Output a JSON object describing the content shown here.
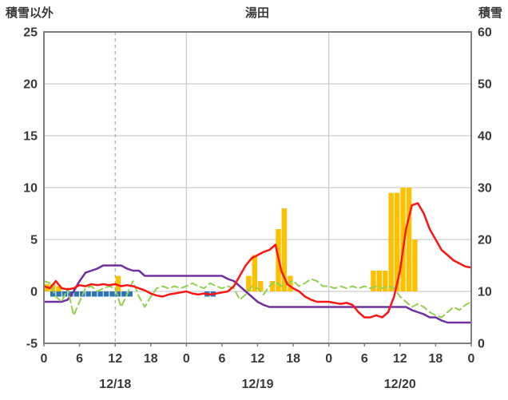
{
  "header": {
    "left_axis_title": "積雪以外",
    "station_title": "湯田",
    "right_axis_title": "積雪"
  },
  "chart_data": {
    "type": "line",
    "title": "湯田",
    "grid": true,
    "legend_position": "none",
    "left_axis": {
      "label": "積雪以外",
      "min": -5,
      "max": 25,
      "ticks": [
        25,
        20,
        15,
        10,
        5,
        0,
        -5
      ]
    },
    "right_axis": {
      "label": "積雪",
      "min": 0,
      "max": 60,
      "ticks": [
        60,
        50,
        40,
        30,
        20,
        10,
        0
      ]
    },
    "x_axis": {
      "hours_total": 72,
      "tick_hours": [
        0,
        6,
        12,
        18,
        24,
        30,
        36,
        42,
        48,
        54,
        60,
        66,
        72
      ],
      "tick_labels": [
        "0",
        "6",
        "12",
        "18",
        "0",
        "6",
        "12",
        "18",
        "0",
        "6",
        "12",
        "18",
        "0"
      ],
      "day_labels": [
        {
          "label": "12/18",
          "center_hour": 12
        },
        {
          "label": "12/19",
          "center_hour": 36
        },
        {
          "label": "12/20",
          "center_hour": 60
        }
      ],
      "day_boundary_hours": [
        24,
        48
      ],
      "marker_line_hour": 12
    },
    "colors": {
      "precipitation_bar": "#FFC000",
      "sunshine_bar": "#2E75B6",
      "temperature_line": "#FF1414",
      "snow_depth_line": "#7030A0",
      "green_dashed_line": "#92D050",
      "grid": "#C0C0C0",
      "border": "#7F7F7F",
      "text": "#3A3A3A"
    },
    "series": [
      {
        "name": "precipitation-bars",
        "type": "bar-up",
        "axis": "left",
        "color": "#FFC000",
        "values": [
          0.7,
          0.7,
          0.5,
          0,
          0,
          0,
          0,
          0,
          0,
          0,
          0,
          0,
          1.5,
          0,
          0,
          0,
          0,
          0,
          0,
          0,
          0,
          0,
          0,
          0,
          0,
          0,
          0,
          0,
          0,
          0,
          0,
          0,
          0,
          0,
          1.5,
          3.5,
          1,
          0,
          1,
          6,
          8,
          1.5,
          0,
          0,
          0,
          0,
          0,
          0,
          0,
          0,
          0,
          0,
          0,
          0,
          0,
          2,
          2,
          2,
          9.5,
          9.5,
          10,
          10,
          5,
          0,
          0,
          0,
          0,
          0,
          0,
          0,
          0,
          0
        ]
      },
      {
        "name": "sunshine-bars",
        "type": "bar-down",
        "axis": "left",
        "color": "#2E75B6",
        "values": [
          0,
          0.5,
          0.5,
          0.5,
          0.5,
          0.5,
          0.5,
          0.5,
          0.5,
          0.5,
          0.5,
          0.5,
          0.5,
          0.5,
          0.5,
          0,
          0,
          0,
          0,
          0,
          0,
          0,
          0,
          0,
          0,
          0,
          0,
          0.5,
          0.5,
          0,
          0,
          0,
          0,
          0,
          0,
          0,
          0,
          0,
          0,
          0,
          0,
          0,
          0,
          0,
          0,
          0,
          0,
          0,
          0,
          0,
          0,
          0,
          0,
          0,
          0,
          0,
          0,
          0,
          0,
          0,
          0,
          0,
          0,
          0,
          0,
          0,
          0,
          0,
          0,
          0,
          0,
          0
        ]
      },
      {
        "name": "snow-depth-line",
        "type": "line",
        "axis": "right",
        "color": "#7030A0",
        "width": 2.5,
        "values": [
          -1,
          -1,
          -1,
          -1,
          -0.8,
          0,
          1,
          1.8,
          2,
          2.2,
          2.5,
          2.5,
          2.5,
          2.5,
          2.2,
          2,
          2,
          1.5,
          1.5,
          1.5,
          1.5,
          1.5,
          1.5,
          1.5,
          1.5,
          1.5,
          1.5,
          1.5,
          1.5,
          1.5,
          1.5,
          1.2,
          1,
          0.5,
          0,
          -0.5,
          -1,
          -1.3,
          -1.5,
          -1.5,
          -1.5,
          -1.5,
          -1.5,
          -1.5,
          -1.5,
          -1.5,
          -1.5,
          -1.5,
          -1.5,
          -1.5,
          -1.5,
          -1.5,
          -1.5,
          -1.5,
          -1.5,
          -1.5,
          -1.5,
          -1.5,
          -1.5,
          -1.5,
          -1.5,
          -1.5,
          -1.8,
          -2,
          -2.2,
          -2.5,
          -2.5,
          -2.8,
          -3,
          -3,
          -3,
          -3,
          -3
        ]
      },
      {
        "name": "green-dashed-line",
        "type": "line-dashed",
        "axis": "left",
        "color": "#92D050",
        "width": 2,
        "values": [
          1.0,
          0.8,
          -0.5,
          -1.0,
          0.3,
          -2.3,
          -1.0,
          0.3,
          0.5,
          0.0,
          0.3,
          0.5,
          0.3,
          -1.5,
          -0.3,
          1.0,
          -0.5,
          -1.5,
          -0.5,
          0.3,
          0.5,
          0.3,
          0.5,
          0.3,
          0.5,
          0.8,
          0.5,
          0.3,
          0.8,
          0.5,
          0.3,
          0.5,
          0.3,
          -0.8,
          -0.3,
          0.5,
          0.3,
          -0.3,
          0.5,
          1.0,
          0.5,
          0.8,
          1.0,
          0.5,
          0.8,
          1.2,
          1.0,
          0.5,
          0.5,
          0.3,
          0.5,
          0.3,
          0.5,
          0.3,
          0.5,
          0.3,
          0.5,
          0.3,
          0.5,
          0.3,
          -0.5,
          -1.0,
          -1.5,
          -1.2,
          -1.5,
          -2.0,
          -2.3,
          -2.5,
          -2.0,
          -1.5,
          -1.8,
          -1.3,
          -1.0
        ]
      },
      {
        "name": "temperature-line",
        "type": "line",
        "axis": "left",
        "color": "#FF1414",
        "width": 2.5,
        "values": [
          0.5,
          0.3,
          1.0,
          0.3,
          0.2,
          0.3,
          0.6,
          0.5,
          0.7,
          0.6,
          0.7,
          0.6,
          0.7,
          0.5,
          0.6,
          0.5,
          0.3,
          0.1,
          -0.2,
          -0.4,
          -0.5,
          -0.3,
          -0.2,
          -0.1,
          0.0,
          -0.2,
          -0.3,
          -0.2,
          -0.3,
          -0.2,
          -0.1,
          0.0,
          0.5,
          1.5,
          2.5,
          3.2,
          3.5,
          3.8,
          4.0,
          4.5,
          2.0,
          0.7,
          0.3,
          0.0,
          -0.5,
          -0.8,
          -1.0,
          -1.0,
          -1.0,
          -1.1,
          -1.2,
          -1.1,
          -1.3,
          -2.0,
          -2.5,
          -2.5,
          -2.3,
          -2.5,
          -2.0,
          -0.5,
          2.0,
          6.0,
          8.3,
          8.5,
          7.5,
          6.0,
          5.0,
          4.0,
          3.5,
          3.0,
          2.7,
          2.4,
          2.3
        ]
      }
    ]
  }
}
